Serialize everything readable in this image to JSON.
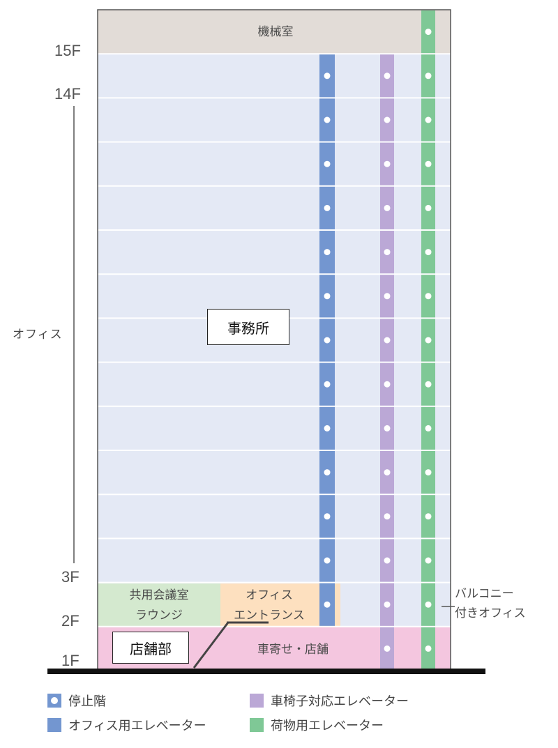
{
  "floors": {
    "f15": "15F",
    "f14": "14F",
    "f3": "3F",
    "f2": "2F",
    "f1": "1F"
  },
  "labels": {
    "machine_room": "機械室",
    "office_side": "オフィス",
    "offices": "事務所",
    "conference_line1": "共用会議室",
    "conference_line2": "ラウンジ",
    "entrance_line1": "オフィス",
    "entrance_line2": "エントランス",
    "retail_tag": "店舗部",
    "carport": "車寄せ・店舗",
    "balcony_line1": "バルコニー",
    "balcony_line2": "付きオフィス"
  },
  "legend": {
    "stop_floor": "停止階",
    "office_elevator": "オフィス用エレベーター",
    "wheelchair_elevator": "車椅子対応エレベーター",
    "freight_elevator": "荷物用エレベーター"
  },
  "colors": {
    "office_floor": "#e4e9f5",
    "machine_room": "#e2dcd7",
    "conference": "#d4e9cf",
    "entrance": "#fde0bf",
    "retail": "#f4c6df",
    "office_elevator": "#7396d0",
    "wheelchair_elevator": "#bba8d6",
    "freight_elevator": "#7fc896",
    "ground": "#111111"
  },
  "elevator_stops": {
    "office_elevator": [
      "2F",
      "3F",
      "4F",
      "5F",
      "6F",
      "7F",
      "8F",
      "9F",
      "10F",
      "11F",
      "12F",
      "13F",
      "14F"
    ],
    "wheelchair_elevator": [
      "1F",
      "2F",
      "3F",
      "4F",
      "5F",
      "6F",
      "7F",
      "8F",
      "9F",
      "10F",
      "11F",
      "12F",
      "13F",
      "14F"
    ],
    "freight_elevator": [
      "1F",
      "2F",
      "3F",
      "4F",
      "5F",
      "6F",
      "7F",
      "8F",
      "9F",
      "10F",
      "11F",
      "12F",
      "13F",
      "14F",
      "15F"
    ]
  }
}
